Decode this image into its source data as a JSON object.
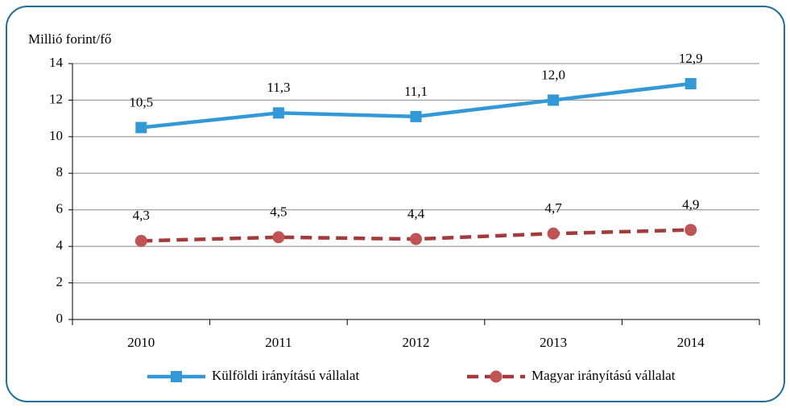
{
  "chart_data": {
    "type": "line",
    "y_label": "Millió forint/fő",
    "categories": [
      "2010",
      "2011",
      "2012",
      "2013",
      "2014"
    ],
    "series": [
      {
        "name": "Külföldi irányítású vállalat",
        "color": "#3399d6",
        "marker": "square",
        "dash": false,
        "values": [
          10.5,
          11.3,
          11.1,
          12.0,
          12.9
        ],
        "value_labels": [
          "10,5",
          "11,3",
          "11,1",
          "12,0",
          "12,9"
        ]
      },
      {
        "name": "Magyar irányítású vállalat",
        "color": "#a33a3c",
        "marker_color": "#c05454",
        "marker": "circle",
        "dash": true,
        "values": [
          4.3,
          4.5,
          4.4,
          4.7,
          4.9
        ],
        "value_labels": [
          "4,3",
          "4,5",
          "4,4",
          "4,7",
          "4,9"
        ]
      }
    ],
    "ylim": [
      0,
      14
    ],
    "yticks": [
      0,
      2,
      4,
      6,
      8,
      10,
      12,
      14
    ],
    "grid": true,
    "legend": "bottom"
  }
}
